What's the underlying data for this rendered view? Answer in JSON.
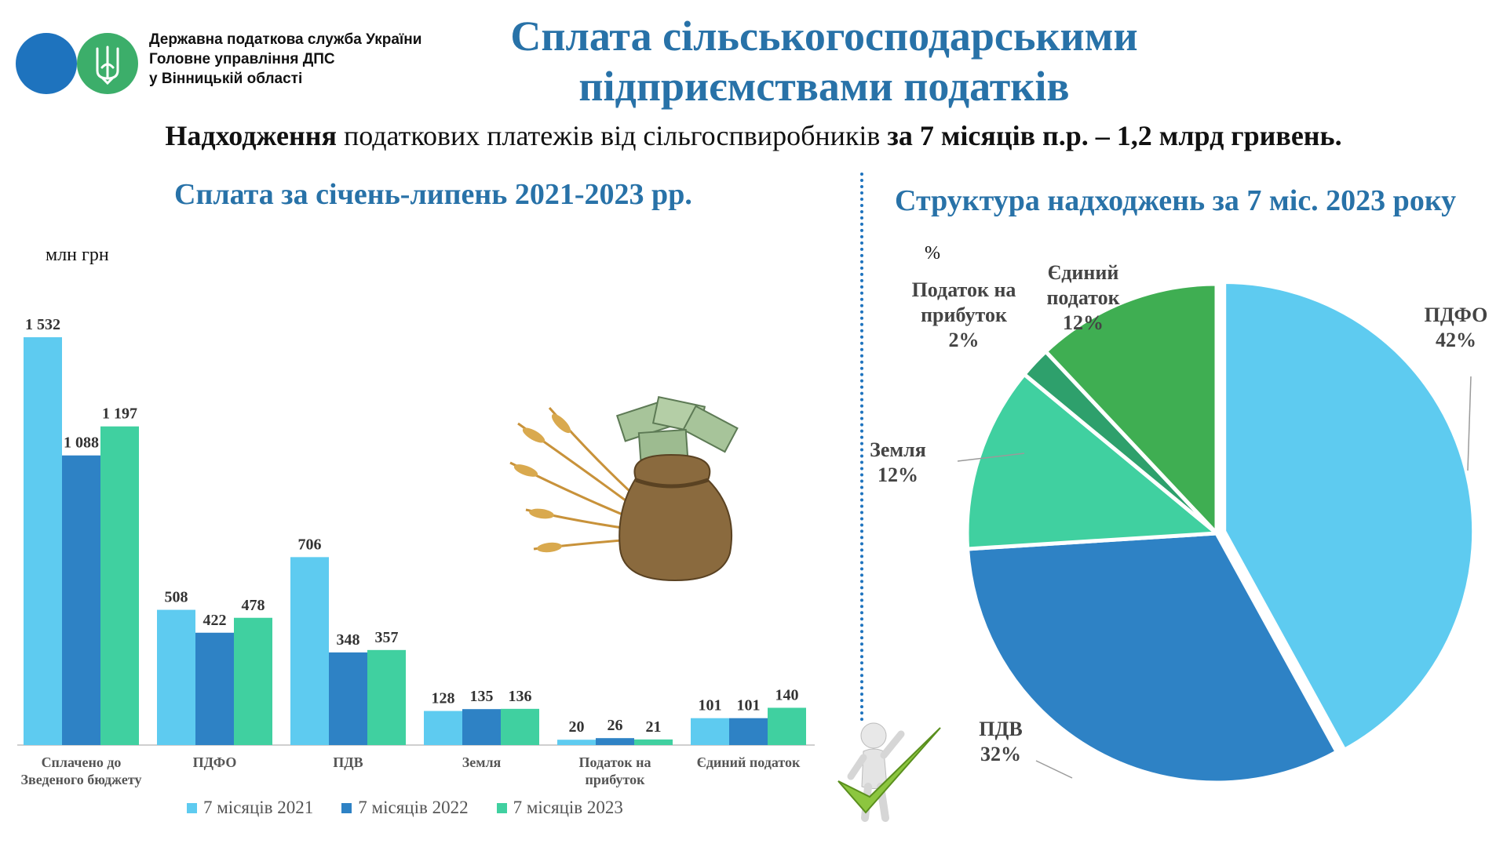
{
  "header": {
    "org_lines": [
      "Державна податкова служба України",
      "Головне управління ДПС",
      "у Вінницькій області"
    ],
    "title_line1": "Сплата сільськогосподарськими",
    "title_line2": "підприємствами податків",
    "subtitle_bold1": "Надходження",
    "subtitle_normal": " податкових платежів від сільгоспвиробників ",
    "subtitle_bold2": "за 7 місяців п.р. – 1,2 млрд гривень."
  },
  "colors": {
    "title": "#2872a8",
    "series_2021": "#5ecbf0",
    "series_2022": "#2e82c5",
    "series_2023": "#40d0a0",
    "pie_pdfo": "#5ecbf0",
    "pie_pdv": "#2e82c5",
    "pie_land": "#40d0a0",
    "pie_profit": "#2ea06c",
    "pie_single": "#3fae52"
  },
  "icons": {
    "logo": "trident-emblem-icon",
    "wheat": "wheat-money-bag-image",
    "figure": "checkmark-figure-image"
  },
  "chart_data": [
    {
      "type": "bar",
      "title": "Сплата за січень-липень 2021-2023 рр.",
      "ylabel": "млн грн",
      "categories": [
        "Сплачено до Зведеного бюджету",
        "ПДФО",
        "ПДВ",
        "Земля",
        "Податок на прибуток",
        "Єдиний податок"
      ],
      "category_lines": [
        [
          "Сплачено до",
          "Зведеного бюджету"
        ],
        [
          "ПДФО"
        ],
        [
          "ПДВ"
        ],
        [
          "Земля"
        ],
        [
          "Податок на",
          "прибуток"
        ],
        [
          "Єдиний податок"
        ]
      ],
      "series": [
        {
          "name": "7 місяців 2021",
          "values": [
            1532,
            508,
            706,
            128,
            20,
            101
          ],
          "labels": [
            "1 532",
            "508",
            "706",
            "128",
            "20",
            "101"
          ]
        },
        {
          "name": "7 місяців 2022",
          "values": [
            1088,
            422,
            348,
            135,
            26,
            101
          ],
          "labels": [
            "1 088",
            "422",
            "348",
            "135",
            "26",
            "101"
          ]
        },
        {
          "name": "7 місяців 2023",
          "values": [
            1197,
            478,
            357,
            136,
            21,
            140
          ],
          "labels": [
            "1 197",
            "478",
            "357",
            "136",
            "21",
            "140"
          ]
        }
      ],
      "ylim": [
        0,
        1532
      ],
      "grid": false,
      "legend": "bottom"
    },
    {
      "type": "pie",
      "title": "Структура надходжень за 7 міс. 2023 року",
      "unit": "%",
      "slices": [
        {
          "name": "ПДФО",
          "value": 42,
          "label": "42%"
        },
        {
          "name": "ПДВ",
          "value": 32,
          "label": "32%"
        },
        {
          "name": "Земля",
          "value": 12,
          "label": "12%"
        },
        {
          "name": "Податок на прибуток",
          "value": 2,
          "label": "2%"
        },
        {
          "name": "Єдиний податок",
          "value": 12,
          "label": "12%"
        }
      ],
      "slice_name_lines": [
        [
          "ПДФО"
        ],
        [
          "ПДВ"
        ],
        [
          "Земля"
        ],
        [
          "Податок на",
          "прибуток"
        ],
        [
          "Єдиний",
          "податок"
        ]
      ],
      "legend": "none"
    }
  ]
}
